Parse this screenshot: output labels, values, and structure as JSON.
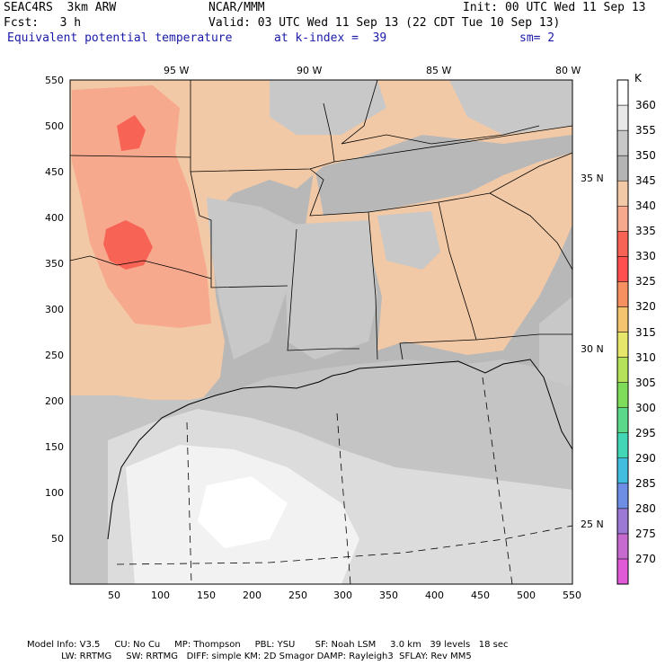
{
  "header": {
    "model": "SEAC4RS  3km ARW",
    "org": "NCAR/MMM",
    "init": "Init: 00 UTC Wed 11 Sep 13",
    "fcst": "Fcst:   3 h",
    "valid": "Valid: 03 UTC Wed 11 Sep 13 (22 CDT Tue 10 Sep 13)",
    "field": "Equivalent potential temperature",
    "level": "at k-index =  39",
    "smooth": "sm= 2"
  },
  "axes": {
    "x_ticks": [
      "50",
      "100",
      "150",
      "200",
      "250",
      "300",
      "350",
      "400",
      "450",
      "500",
      "550"
    ],
    "y_ticks": [
      "550",
      "500",
      "450",
      "400",
      "350",
      "300",
      "250",
      "200",
      "150",
      "100",
      "50"
    ],
    "lon_labels": [
      "95 W",
      "90 W",
      "85 W",
      "80 W"
    ],
    "lat_labels": [
      "35 N",
      "30 N",
      "25 N"
    ]
  },
  "colorbar": {
    "unit": "K",
    "levels": [
      "360",
      "355",
      "350",
      "345",
      "340",
      "335",
      "330",
      "325",
      "320",
      "315",
      "310",
      "305",
      "300",
      "295",
      "290",
      "285",
      "280",
      "275",
      "270"
    ],
    "colors": [
      "#ffffff",
      "#e8e8e8",
      "#c8c8c8",
      "#b4b4b4",
      "#f2c9a6",
      "#f7a98e",
      "#f76456",
      "#ff4f4f",
      "#f79060",
      "#f5c46e",
      "#e6e66b",
      "#b4e05a",
      "#7fdc5a",
      "#5cd88a",
      "#43d6b6",
      "#42bde0",
      "#6e8ee6",
      "#9d79d6",
      "#c76ad0",
      "#e05ad8"
    ]
  },
  "footer": {
    "line1": "Model Info: V3.5     CU: No Cu     MP: Thompson     PBL: YSU       SF: Noah LSM     3.0 km   39 levels   18 sec",
    "line2": "            LW: RRTMG     SW: RRTMG   DIFF: simple KM: 2D Smagor DAMP: Rayleigh3  SFLAY: Rev MM5"
  }
}
